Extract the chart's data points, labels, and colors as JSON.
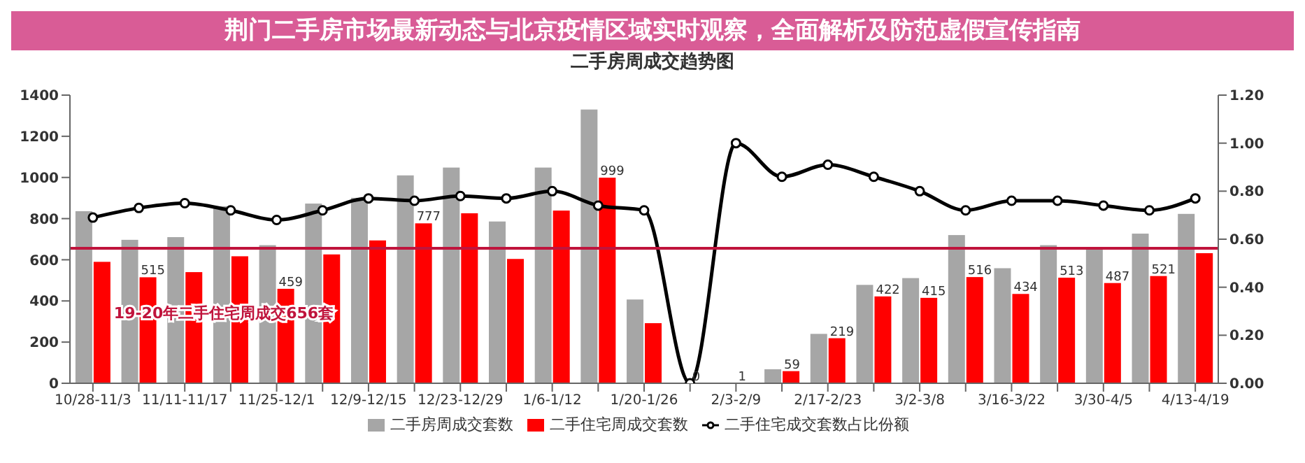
{
  "chart_data": {
    "type": "bar",
    "title": "荆门二手房市场最新动态与北京疫情区域实时观察，全面解析及防范虚假宣传指南",
    "subtitle": "二手房周成交趋势图",
    "categories": [
      "10/28-11/3",
      null,
      "11/11-11/17",
      null,
      "11/25-12/1",
      null,
      "12/9-12/15",
      null,
      "12/23-12/29",
      null,
      "1/6-1/12",
      null,
      "1/20-1/26",
      null,
      "2/3-2/9",
      null,
      "2/17-2/23",
      null,
      "3/2-3/8",
      null,
      "3/16-3/22",
      null,
      "3/30-4/5",
      null,
      "4/13-4/19"
    ],
    "series": [
      {
        "name": "二手房周成交套数",
        "color": "#a6a6a6",
        "values": [
          836,
          697,
          710,
          860,
          671,
          873,
          901,
          1010,
          1048,
          786,
          1048,
          1330,
          407,
          0,
          1,
          68,
          240,
          478,
          511,
          720,
          559,
          671,
          658,
          727,
          823
        ]
      },
      {
        "name": "二手住宅周成交套数",
        "color": "#ff0000",
        "values": [
          590,
          515,
          540,
          617,
          459,
          626,
          694,
          777,
          826,
          604,
          839,
          999,
          292,
          0,
          1,
          59,
          219,
          422,
          415,
          516,
          434,
          513,
          487,
          521,
          632
        ],
        "value_labels": [
          null,
          "515",
          null,
          null,
          "459",
          null,
          null,
          "777",
          null,
          null,
          null,
          "999",
          null,
          "0",
          "1",
          "59",
          "219",
          "422",
          "415",
          "516",
          "434",
          "513",
          "487",
          "521",
          null
        ]
      },
      {
        "name": "二手住宅成交套数占比份额",
        "type": "line",
        "axis": "y2",
        "color": "#000000",
        "values": [
          0.69,
          0.73,
          0.75,
          0.72,
          0.68,
          0.72,
          0.77,
          0.76,
          0.78,
          0.77,
          0.8,
          0.74,
          0.72,
          0,
          1,
          0.86,
          0.91,
          0.86,
          0.8,
          0.72,
          0.76,
          0.76,
          0.74,
          0.72,
          0.77
        ]
      }
    ],
    "ylim": [
      0,
      1400
    ],
    "yticks": [
      0,
      200,
      400,
      600,
      800,
      1000,
      1200,
      1400
    ],
    "y2lim": [
      0,
      1.2
    ],
    "y2ticks": [
      {
        "value": 0,
        "label": "0.00"
      },
      {
        "value": 0.2,
        "label": "0.20"
      },
      {
        "value": 0.4,
        "label": "0.40"
      },
      {
        "value": 0.6,
        "label": "0.60"
      },
      {
        "value": 0.8,
        "label": "0.80"
      },
      {
        "value": 1,
        "label": "1.00"
      },
      {
        "value": 1.2,
        "label": "1.20"
      }
    ],
    "ref_lines": [
      {
        "axis": "y",
        "value": 656,
        "label": "19-20年二手住宅周成交656套",
        "color": "#c0143c"
      }
    ],
    "legend": "bottom",
    "marker": "circle",
    "line_style": "solid"
  }
}
